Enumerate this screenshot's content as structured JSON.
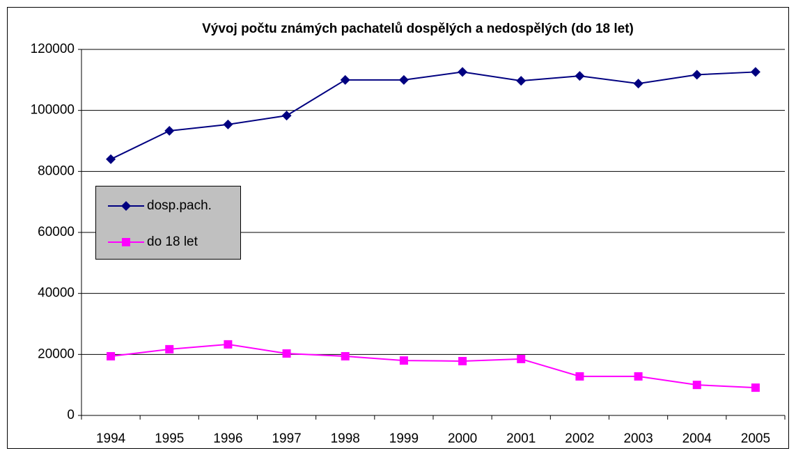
{
  "chart_data": {
    "type": "line",
    "title": "Vývoj počtu známých pachatelů dospělých a nedospělých (do 18 let)",
    "categories": [
      "1994",
      "1995",
      "1996",
      "1997",
      "1998",
      "1999",
      "2000",
      "2001",
      "2002",
      "2003",
      "2004",
      "2005"
    ],
    "series": [
      {
        "name": "dosp.pach.",
        "color": "#000080",
        "marker": "diamond",
        "values": [
          84000,
          93300,
          95400,
          98300,
          110000,
          110000,
          112600,
          109700,
          111300,
          108800,
          111700,
          112600
        ]
      },
      {
        "name": "do 18 let",
        "color": "#ff00ff",
        "marker": "square",
        "values": [
          19400,
          21700,
          23300,
          20300,
          19400,
          18000,
          17800,
          18500,
          12800,
          12800,
          10000,
          9100
        ]
      }
    ],
    "ylim": [
      0,
      120000
    ],
    "yticks": [
      0,
      20000,
      40000,
      60000,
      80000,
      100000,
      120000
    ],
    "grid": true
  }
}
